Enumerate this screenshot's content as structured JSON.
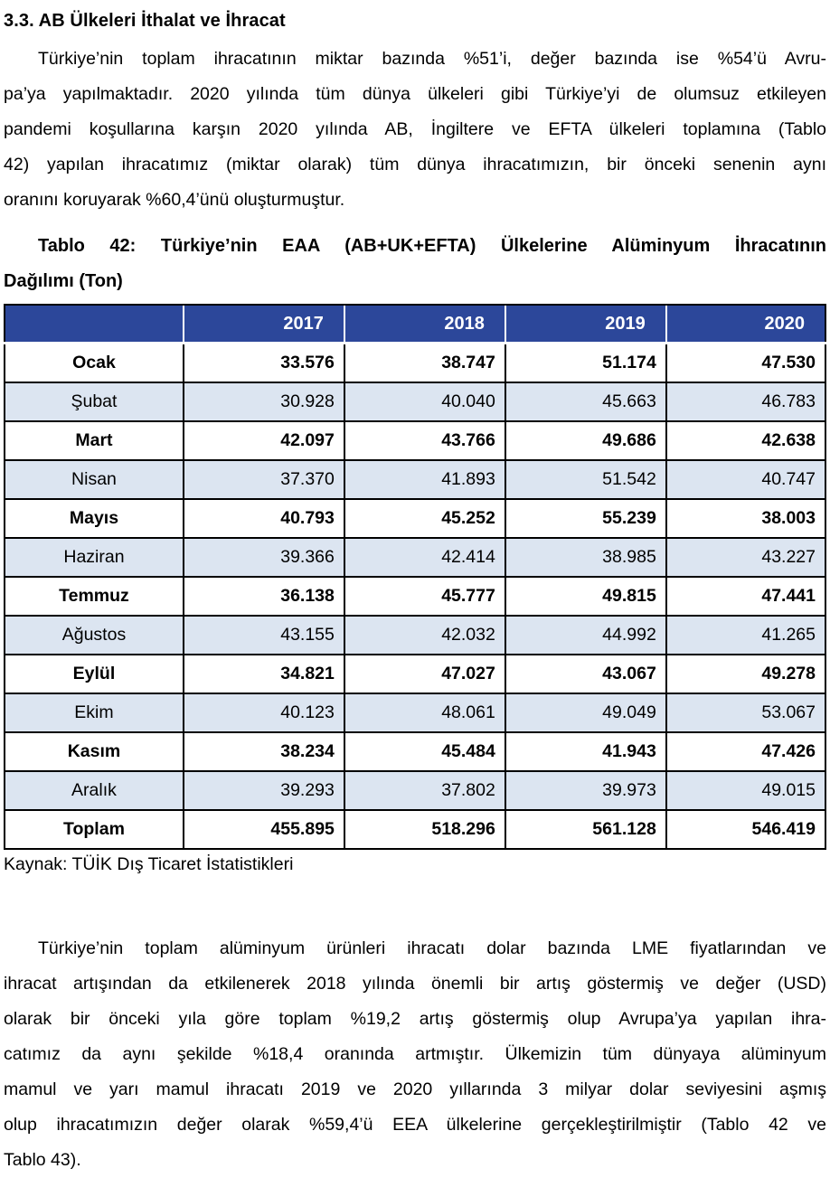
{
  "document": {
    "heading": "3.3. AB Ülkeleri İthalat ve İhracat",
    "paragraph1_lines": [
      "Türkiye’nin toplam ihracatının miktar bazında %51’i, değer bazında ise %54’ü Avru-",
      "pa’ya yapılmaktadır. 2020 yılında tüm dünya ülkeleri gibi Türkiye’yi de olumsuz etkileyen",
      "pandemi koşullarına karşın 2020 yılında AB, İngiltere ve EFTA ülkeleri toplamına (Tablo",
      "42) yapılan ihracatımız (miktar olarak) tüm dünya ihracatımızın, bir önceki senenin aynı",
      "oranını koruyarak %60,4’ünü oluşturmuştur."
    ],
    "table_caption_lines": [
      "Tablo 42: Türkiye’nin EAA (AB+UK+EFTA) Ülkelerine Alüminyum İhracatının",
      "Dağılımı (Ton)"
    ],
    "source": "Kaynak: TÜİK Dış Ticaret İstatistikleri",
    "paragraph2_lines": [
      "Türkiye’nin toplam alüminyum ürünleri ihracatı dolar bazında LME fiyatlarından ve",
      "ihracat artışından da etkilenerek 2018 yılında önemli bir artış göstermiş ve değer (USD)",
      "olarak bir önceki yıla göre toplam %19,2 artış göstermiş olup Avrupa’ya yapılan ihra-",
      "catımız da aynı şekilde %18,4 oranında artmıştır. Ülkemizin tüm dünyaya alüminyum",
      "mamul ve yarı mamul ihracatı 2019 ve 2020 yıllarında 3 milyar dolar seviyesini aşmış",
      "olup ihracatımızın değer olarak %59,4’ü EEA ülkelerine gerçekleştirilmiştir (Tablo 42 ve",
      "Tablo 43)."
    ]
  },
  "table": {
    "columns": [
      "",
      "2017",
      "2018",
      "2019",
      "2020"
    ],
    "rows": [
      {
        "label": "Ocak",
        "values": [
          "33.576",
          "38.747",
          "51.174",
          "47.530"
        ],
        "bold": true,
        "shaded": false
      },
      {
        "label": "Şubat",
        "values": [
          "30.928",
          "40.040",
          "45.663",
          "46.783"
        ],
        "bold": false,
        "shaded": true
      },
      {
        "label": "Mart",
        "values": [
          "42.097",
          "43.766",
          "49.686",
          "42.638"
        ],
        "bold": true,
        "shaded": false
      },
      {
        "label": "Nisan",
        "values": [
          "37.370",
          "41.893",
          "51.542",
          "40.747"
        ],
        "bold": false,
        "shaded": true
      },
      {
        "label": "Mayıs",
        "values": [
          "40.793",
          "45.252",
          "55.239",
          "38.003"
        ],
        "bold": true,
        "shaded": false
      },
      {
        "label": "Haziran",
        "values": [
          "39.366",
          "42.414",
          "38.985",
          "43.227"
        ],
        "bold": false,
        "shaded": true
      },
      {
        "label": "Temmuz",
        "values": [
          "36.138",
          "45.777",
          "49.815",
          "47.441"
        ],
        "bold": true,
        "shaded": false
      },
      {
        "label": "Ağustos",
        "values": [
          "43.155",
          "42.032",
          "44.992",
          "41.265"
        ],
        "bold": false,
        "shaded": true
      },
      {
        "label": "Eylül",
        "values": [
          "34.821",
          "47.027",
          "43.067",
          "49.278"
        ],
        "bold": true,
        "shaded": false
      },
      {
        "label": "Ekim",
        "values": [
          "40.123",
          "48.061",
          "49.049",
          "53.067"
        ],
        "bold": false,
        "shaded": true
      },
      {
        "label": "Kasım",
        "values": [
          "38.234",
          "45.484",
          "41.943",
          "47.426"
        ],
        "bold": true,
        "shaded": false
      },
      {
        "label": "Aralık",
        "values": [
          "39.293",
          "37.802",
          "39.973",
          "49.015"
        ],
        "bold": false,
        "shaded": true
      },
      {
        "label": "Toplam",
        "values": [
          "455.895",
          "518.296",
          "561.128",
          "546.419"
        ],
        "bold": true,
        "shaded": false,
        "total": true
      }
    ],
    "colors": {
      "header_bg": "#2c479a",
      "header_text": "#ffffff",
      "shaded_row_bg": "#dce5f1"
    }
  }
}
